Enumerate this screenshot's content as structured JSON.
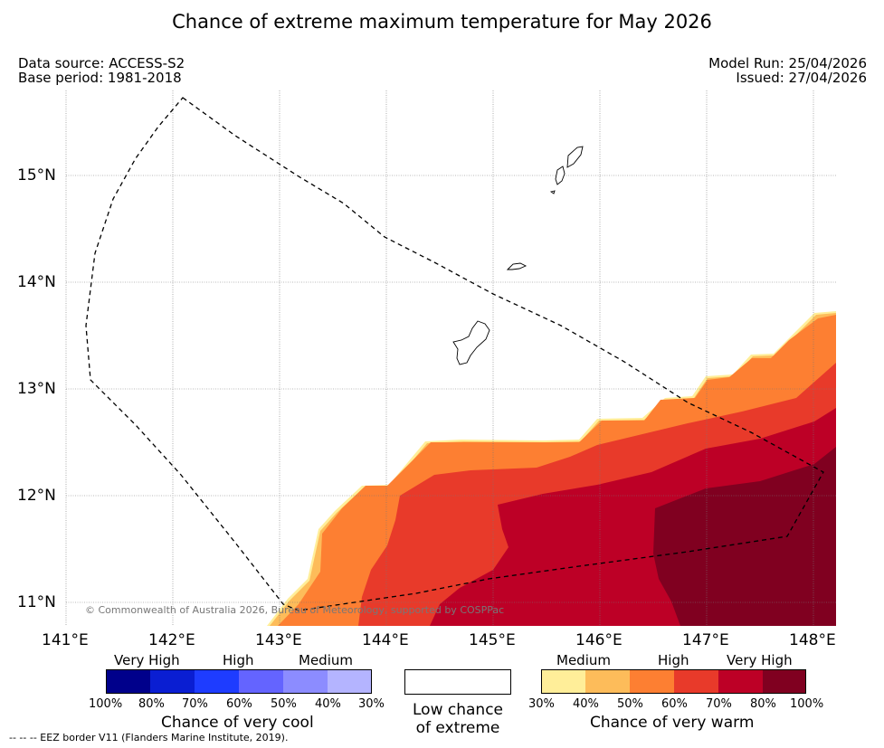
{
  "title": "Chance of extreme maximum temperature for May 2026",
  "meta_left": {
    "source": "Data source: ACCESS-S2",
    "base": "Base period: 1981-2018"
  },
  "meta_right": {
    "model_run": "Model Run: 25/04/2026",
    "issued": "Issued: 27/04/2026"
  },
  "map": {
    "lat_labels": [
      "15°N",
      "14°N",
      "13°N",
      "12°N",
      "11°N"
    ],
    "lon_labels": [
      "141°E",
      "142°E",
      "143°E",
      "144°E",
      "145°E",
      "146°E",
      "147°E",
      "148°E"
    ],
    "copyright": "© Commonwealth of Australia 2026, Bureau of Meteorology, supported by COSPPac"
  },
  "legend": {
    "cool": {
      "categories": [
        "Very High",
        "High",
        "Medium"
      ],
      "ticks": [
        "100%",
        "80%",
        "70%",
        "60%",
        "50%",
        "40%",
        "30%"
      ],
      "caption": "Chance of very cool",
      "colors": [
        "#00008b",
        "#0a1ed2",
        "#1e3cff",
        "#6464ff",
        "#8c8cff",
        "#b4b4ff"
      ]
    },
    "neutral": {
      "line1": "Low chance",
      "line2": "of extreme"
    },
    "warm": {
      "categories": [
        "Medium",
        "High",
        "Very High"
      ],
      "ticks": [
        "30%",
        "40%",
        "50%",
        "60%",
        "70%",
        "80%",
        "100%"
      ],
      "caption": "Chance of very warm",
      "colors": [
        "#ffee99",
        "#fdbc5a",
        "#fd7f32",
        "#e83a2a",
        "#bd0026",
        "#800020"
      ]
    }
  },
  "footer": "--  --  -- EEZ border V11 (Flanders Marine Institute, 2019)."
}
